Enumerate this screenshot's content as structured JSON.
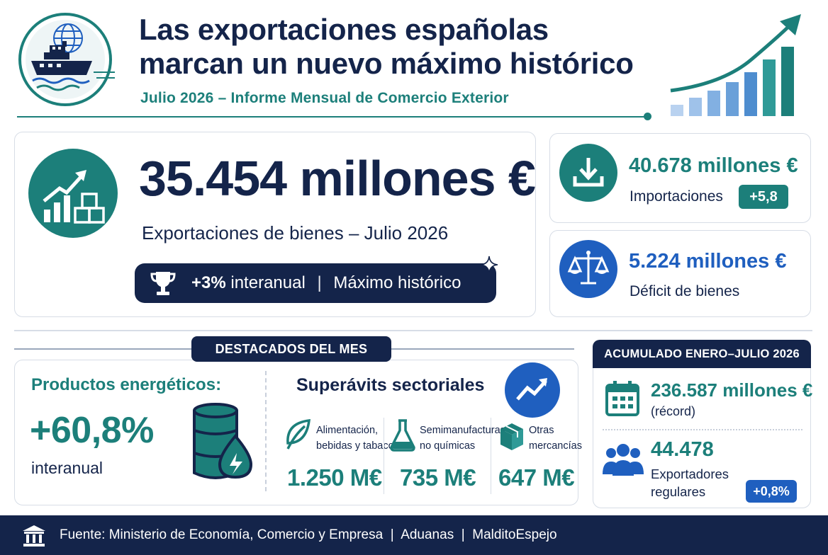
{
  "header": {
    "title_line1": "Las exportaciones españolas",
    "title_line2": "marcan un nuevo máximo histórico",
    "subtitle": "Julio 2026 – Informe Mensual de Comercio Exterior"
  },
  "exports": {
    "value": "35.454 millones €",
    "label": "Exportaciones de bienes – Julio 2026",
    "pill_change": "+3%",
    "pill_change_word": "interanual",
    "pill_separator": "|",
    "pill_record": "Máximo histórico"
  },
  "imports": {
    "value": "40.678 millones €",
    "label": "Importaciones",
    "badge": "+5,8"
  },
  "deficit": {
    "value": "5.224 millones €",
    "label": "Déficit de bienes"
  },
  "highlights": {
    "header": "DESTACADOS DEL MES",
    "energy": {
      "title": "Productos energéticos:",
      "value": "+60,8%",
      "label": "interanual"
    },
    "surplus": {
      "title": "Superávits sectoriales",
      "sectors": [
        {
          "label_line1": "Alimentación,",
          "label_line2": "bebidas y tabaco",
          "value": "1.250 M€",
          "icon": "leaf-icon"
        },
        {
          "label_line1": "Semimanufacturas",
          "label_line2": "no químicas",
          "value": "735 M€",
          "icon": "flask-icon"
        },
        {
          "label_line1": "Otras",
          "label_line2": "mercancías",
          "value": "647 M€",
          "icon": "box-icon"
        }
      ]
    }
  },
  "accumulated": {
    "header": "ACUMULADO ENERO–JULIO 2026",
    "value": "236.587 millones €",
    "note": "(récord)",
    "exporters_value": "44.478",
    "exporters_label_line1": "Exportadores",
    "exporters_label_line2": "regulares",
    "exporters_badge": "+0,8%"
  },
  "footer": {
    "source": "Fuente: Ministerio de Economía, Comercio y Empresa  |  Aduanas  |  MalditoEspejo"
  },
  "colors": {
    "navy": "#14244a",
    "teal": "#1c7f7a",
    "blue": "#1f5fbf",
    "border": "#d7dde6"
  }
}
